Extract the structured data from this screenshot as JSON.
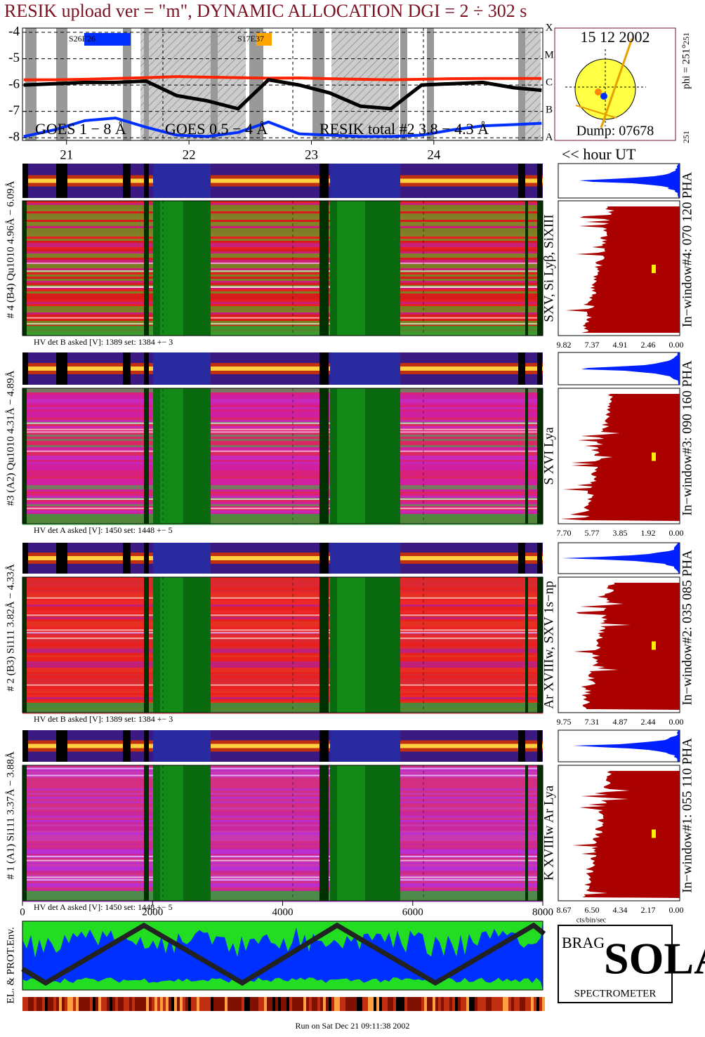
{
  "chart_data": {
    "type": "line",
    "title": "RESIK upload ver = \"m\", DYNAMIC ALLOCATION  DGI =   2 ÷ 302 s",
    "x": [
      20.65,
      20.9,
      21.15,
      21.4,
      21.65,
      21.9,
      22.15,
      22.4,
      22.65,
      22.9,
      23.15,
      23.4,
      23.65,
      23.9,
      24.15,
      24.4,
      24.65,
      24.88
    ],
    "series": [
      {
        "name": "GOES 1 − 8 Å",
        "color": "#ff2200",
        "values": [
          -5.8,
          -5.8,
          -5.78,
          -5.75,
          -5.72,
          -5.68,
          -5.7,
          -5.72,
          -5.74,
          -5.73,
          -5.76,
          -5.78,
          -5.8,
          -5.78,
          -5.76,
          -5.75,
          -5.75,
          -5.75
        ]
      },
      {
        "name": "GOES 0.5 − 4 Å",
        "color": "#0030ff",
        "values": [
          -7.95,
          -7.7,
          -7.35,
          -7.25,
          -7.6,
          -7.9,
          -7.95,
          -7.8,
          -7.4,
          -7.85,
          -7.9,
          -7.95,
          -7.95,
          -7.9,
          -7.7,
          -7.55,
          -7.5,
          -7.45
        ]
      },
      {
        "name": "RESIK total #2  3.8 − 4.3 Å",
        "color": "#000000",
        "values": [
          -6.0,
          -5.95,
          -5.9,
          -5.9,
          -5.85,
          -6.4,
          -6.6,
          -6.9,
          -5.8,
          -6.0,
          -6.3,
          -6.8,
          -6.9,
          -6.0,
          -5.95,
          -5.9,
          -6.1,
          -6.2
        ]
      }
    ],
    "xlim": [
      20.64,
      24.89
    ],
    "xticks": [
      21,
      22,
      23,
      24
    ],
    "ylim": [
      -8.1,
      -3.84
    ],
    "yticks": [
      -8,
      -7,
      -6,
      -5,
      -4
    ],
    "grid": true,
    "class_labels": [
      "X",
      "M",
      "C",
      "B",
      "A"
    ],
    "annotations": [
      "S26E26",
      "S17E37"
    ],
    "x_label": "<< hour UT"
  },
  "sun": {
    "date": "15 12 2002",
    "phi": "phi = 251°",
    "small": [
      "251",
      "251"
    ],
    "dump": "Dump: 07678"
  },
  "panels": [
    {
      "label": "# 4 (B4) Qu1010 4.96Å − 6.09Å",
      "line": "SXV, Si Lyβ, SiXIII",
      "window": "In−window#4:  070 120 PHA",
      "hv": "HV det B asked [V]:  1389 set:  1384  +−    3",
      "hist_ticks": [
        "9.82",
        "7.37",
        "4.91",
        "2.46",
        "0.00"
      ]
    },
    {
      "label": "#3 (A2) Qu1010  4.31Å − 4.89Å",
      "line": "S XVI Lya",
      "window": "In−window#3:  090 160 PHA",
      "hv": "HV det A asked [V]:  1450 set:  1448  +−    5",
      "hist_ticks": [
        "7.70",
        "5.77",
        "3.85",
        "1.92",
        "0.00"
      ]
    },
    {
      "label": "# 2 (B3) Si111  3.82Å − 4.33Å",
      "line": "Ar XVIIIw,  SXV 1s−np",
      "window": "In−window#2:  035 085 PHA",
      "hv": "HV det B asked [V]:  1389 set:  1384  +−    3",
      "hist_ticks": [
        "9.75",
        "7.31",
        "4.87",
        "2.44",
        "0.00"
      ]
    },
    {
      "label": "# 1 (A1) Si111  3.37Å − 3.88Å",
      "line": "K XVIIIw  Ar Lya",
      "window": "In−window#1:  055 110 PHA",
      "hv": "HV det A asked [V]:  1450 set:  1448  +−    5",
      "hist_ticks": [
        "8.67",
        "6.50",
        "4.34",
        "2.17",
        "0.00"
      ]
    }
  ],
  "hist_unit": "cts/bin/sec",
  "time_axis": {
    "lim": [
      0,
      8000
    ],
    "ticks": [
      0,
      2000,
      4000,
      6000,
      8000
    ]
  },
  "env_label": "EL. & PROT.Env.",
  "logo": {
    "top": "BRAG",
    "side": "SOLAR",
    "bottom": "SPECTROMETER"
  },
  "footer": "Run on Sat Dec 21 09:11:38 2002"
}
